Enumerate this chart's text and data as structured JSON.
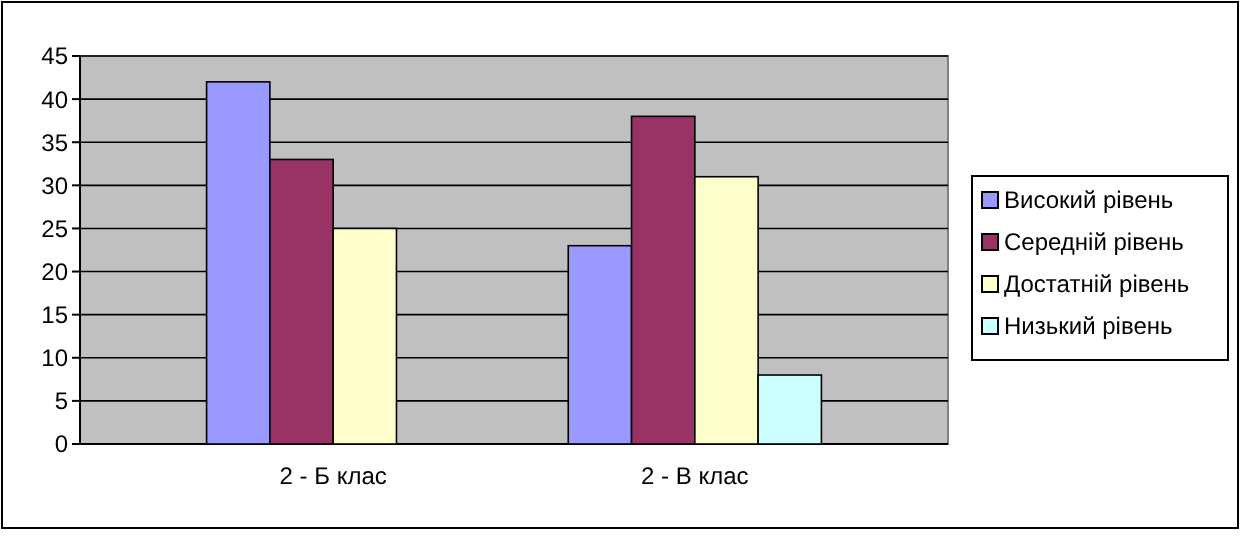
{
  "chart_data": {
    "type": "bar",
    "categories": [
      "2 - Б клас",
      "2 - В клас"
    ],
    "series": [
      {
        "name": "Високий рівень",
        "color": "#9999ff",
        "values": [
          42,
          23
        ]
      },
      {
        "name": "Середній рівень",
        "color": "#993366",
        "values": [
          33,
          38
        ]
      },
      {
        "name": "Достатній рівень",
        "color": "#ffffcc",
        "values": [
          25,
          31
        ]
      },
      {
        "name": "Низький рівень",
        "color": "#ccffff",
        "values": [
          0,
          8
        ]
      }
    ],
    "ylim": [
      0,
      45
    ],
    "yticks": [
      0,
      5,
      10,
      15,
      20,
      25,
      30,
      35,
      40,
      45
    ],
    "grid": "y",
    "legend": "right"
  }
}
